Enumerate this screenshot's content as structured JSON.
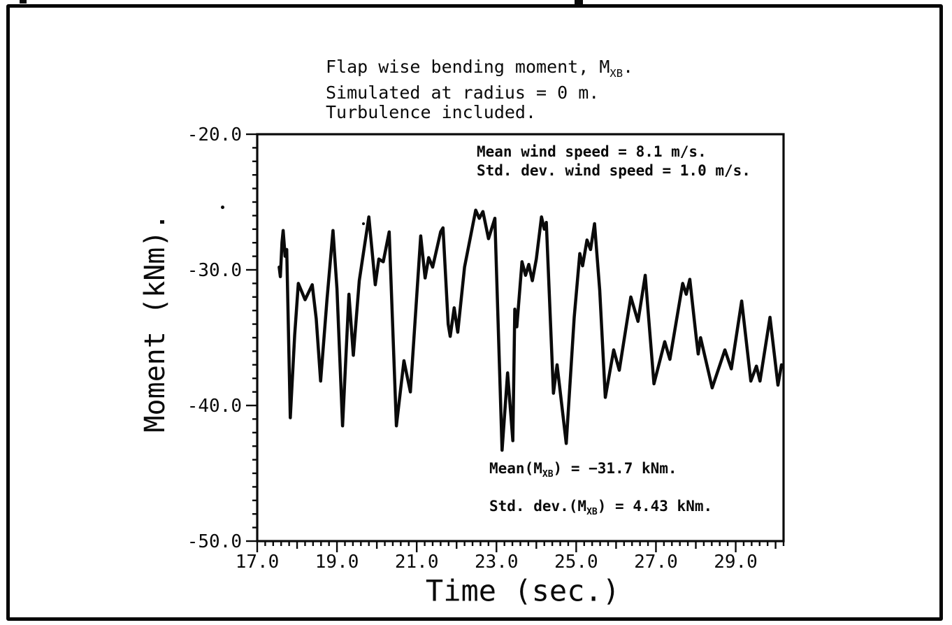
{
  "page": {
    "background": "#ffffff",
    "ink": "#0a0a0a"
  },
  "title": {
    "line1_prefix": "Flap wise bending moment, M",
    "line1_sub": "XB",
    "line1_suffix": ".",
    "line2": "Simulated at radius = 0 m.",
    "line3": "Turbulence included."
  },
  "wind_annotation": {
    "line1": "Mean wind speed = 8.1 m/s.",
    "line2": "Std. dev. wind speed = 1.0 m/s."
  },
  "stats_annotation": {
    "mean_prefix": "Mean(M",
    "mean_sub": "XB",
    "mean_suffix": ") = −31.7 kNm.",
    "std_prefix": "Std. dev.(M",
    "std_sub": "XB",
    "std_suffix": ") = 4.43 kNm."
  },
  "axes": {
    "x_label": "Time (sec.)",
    "y_label": "Moment (kNm)."
  },
  "chart_data": {
    "type": "line",
    "title": "Flap wise bending moment, MXB. Simulated at radius = 0 m. Turbulence included.",
    "xlabel": "Time (sec.)",
    "ylabel": "Moment (kNm).",
    "xlim": [
      17.0,
      30.2
    ],
    "ylim": [
      -50.0,
      -20.0
    ],
    "x_ticks": [
      17.0,
      19.0,
      21.0,
      23.0,
      25.0,
      27.0,
      29.0
    ],
    "y_ticks": [
      -20.0,
      -30.0,
      -40.0,
      -50.0
    ],
    "x_minor_step": 0.2,
    "y_minor_step": 1.0,
    "grid": false,
    "legend": "none",
    "stats": {
      "mean_wind_speed_ms": 8.1,
      "std_dev_wind_speed_ms": 1.0,
      "mean_moment_kNm": -31.7,
      "std_dev_moment_kNm": 4.43
    },
    "series": [
      {
        "name": "MXB flapwise bending moment",
        "points": [
          [
            17.55,
            -29.8
          ],
          [
            17.58,
            -30.5
          ],
          [
            17.62,
            -28.0
          ],
          [
            17.65,
            -27.1
          ],
          [
            17.7,
            -29.0
          ],
          [
            17.74,
            -28.5
          ],
          [
            17.83,
            -40.9
          ],
          [
            17.94,
            -34.8
          ],
          [
            18.03,
            -31.0
          ],
          [
            18.2,
            -32.2
          ],
          [
            18.38,
            -31.1
          ],
          [
            18.48,
            -33.6
          ],
          [
            18.59,
            -38.2
          ],
          [
            18.75,
            -32.2
          ],
          [
            18.9,
            -27.1
          ],
          [
            19.0,
            -31.4
          ],
          [
            19.14,
            -41.5
          ],
          [
            19.3,
            -31.8
          ],
          [
            19.41,
            -36.3
          ],
          [
            19.56,
            -30.8
          ],
          [
            19.8,
            -26.1
          ],
          [
            19.96,
            -31.1
          ],
          [
            20.05,
            -29.2
          ],
          [
            20.16,
            -29.4
          ],
          [
            20.31,
            -27.2
          ],
          [
            20.49,
            -41.5
          ],
          [
            20.68,
            -36.7
          ],
          [
            20.84,
            -39.0
          ],
          [
            21.1,
            -27.5
          ],
          [
            21.21,
            -30.6
          ],
          [
            21.3,
            -29.1
          ],
          [
            21.4,
            -29.8
          ],
          [
            21.6,
            -27.2
          ],
          [
            21.66,
            -26.9
          ],
          [
            21.79,
            -34.0
          ],
          [
            21.84,
            -34.9
          ],
          [
            21.94,
            -32.8
          ],
          [
            22.03,
            -34.6
          ],
          [
            22.2,
            -29.8
          ],
          [
            22.48,
            -25.6
          ],
          [
            22.57,
            -26.2
          ],
          [
            22.66,
            -25.7
          ],
          [
            22.8,
            -27.7
          ],
          [
            22.96,
            -26.2
          ],
          [
            23.14,
            -43.3
          ],
          [
            23.28,
            -37.6
          ],
          [
            23.41,
            -42.6
          ],
          [
            23.46,
            -32.9
          ],
          [
            23.51,
            -34.2
          ],
          [
            23.64,
            -29.4
          ],
          [
            23.73,
            -30.4
          ],
          [
            23.81,
            -29.6
          ],
          [
            23.9,
            -30.8
          ],
          [
            24.0,
            -29.2
          ],
          [
            24.13,
            -26.1
          ],
          [
            24.2,
            -27.0
          ],
          [
            24.25,
            -26.5
          ],
          [
            24.43,
            -39.1
          ],
          [
            24.52,
            -37.0
          ],
          [
            24.75,
            -42.8
          ],
          [
            24.95,
            -33.5
          ],
          [
            25.09,
            -28.8
          ],
          [
            25.16,
            -29.7
          ],
          [
            25.27,
            -27.8
          ],
          [
            25.36,
            -28.5
          ],
          [
            25.46,
            -26.6
          ],
          [
            25.59,
            -31.5
          ],
          [
            25.73,
            -39.4
          ],
          [
            25.94,
            -35.9
          ],
          [
            26.08,
            -37.4
          ],
          [
            26.37,
            -32.0
          ],
          [
            26.55,
            -33.8
          ],
          [
            26.73,
            -30.4
          ],
          [
            26.95,
            -38.4
          ],
          [
            27.22,
            -35.3
          ],
          [
            27.35,
            -36.6
          ],
          [
            27.67,
            -31.0
          ],
          [
            27.76,
            -31.8
          ],
          [
            27.85,
            -30.7
          ],
          [
            28.01,
            -35.0
          ],
          [
            28.06,
            -36.2
          ],
          [
            28.12,
            -35.0
          ],
          [
            28.41,
            -38.7
          ],
          [
            28.73,
            -35.9
          ],
          [
            28.89,
            -37.3
          ],
          [
            29.15,
            -32.3
          ],
          [
            29.38,
            -38.2
          ],
          [
            29.52,
            -37.1
          ],
          [
            29.61,
            -38.2
          ],
          [
            29.86,
            -33.5
          ],
          [
            30.06,
            -38.5
          ],
          [
            30.15,
            -37.0
          ]
        ]
      }
    ]
  }
}
